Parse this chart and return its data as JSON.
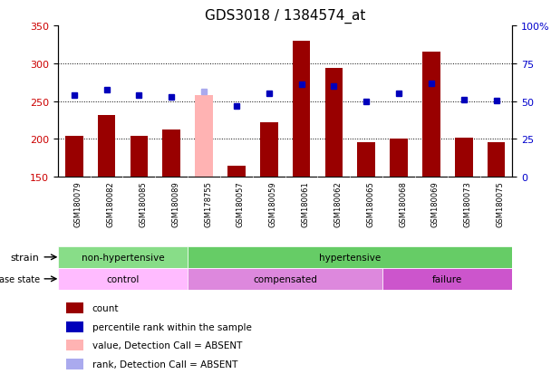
{
  "title": "GDS3018 / 1384574_at",
  "samples": [
    "GSM180079",
    "GSM180082",
    "GSM180085",
    "GSM180089",
    "GSM178755",
    "GSM180057",
    "GSM180059",
    "GSM180061",
    "GSM180062",
    "GSM180065",
    "GSM180068",
    "GSM180069",
    "GSM180073",
    "GSM180075"
  ],
  "counts": [
    204,
    232,
    204,
    213,
    258,
    165,
    222,
    330,
    294,
    196,
    200,
    315,
    202,
    196
  ],
  "absent_count": [
    false,
    false,
    false,
    false,
    true,
    false,
    false,
    false,
    false,
    false,
    false,
    false,
    false,
    false
  ],
  "percentile_ranks": [
    258,
    265,
    258,
    255,
    263,
    243,
    260,
    272,
    270,
    250,
    260,
    273,
    252,
    251
  ],
  "absent_rank": [
    false,
    false,
    false,
    false,
    true,
    false,
    false,
    false,
    false,
    false,
    false,
    false,
    false,
    false
  ],
  "ylim_left": [
    150,
    350
  ],
  "ylim_right": [
    0,
    100
  ],
  "yticks_left": [
    150,
    200,
    250,
    300,
    350
  ],
  "yticks_right": [
    0,
    25,
    50,
    75,
    100
  ],
  "bar_color_normal": "#990000",
  "bar_color_absent": "#ffb3b3",
  "dot_color_normal": "#0000bb",
  "dot_color_absent": "#aaaaee",
  "strain_groups": [
    {
      "label": "non-hypertensive",
      "start": 0,
      "end": 4,
      "color": "#88dd88"
    },
    {
      "label": "hypertensive",
      "start": 4,
      "end": 14,
      "color": "#66cc66"
    }
  ],
  "disease_groups": [
    {
      "label": "control",
      "start": 0,
      "end": 4,
      "color": "#ffbbff"
    },
    {
      "label": "compensated",
      "start": 4,
      "end": 10,
      "color": "#dd88dd"
    },
    {
      "label": "failure",
      "start": 10,
      "end": 14,
      "color": "#cc55cc"
    }
  ],
  "legend_items": [
    {
      "label": "count",
      "color": "#990000"
    },
    {
      "label": "percentile rank within the sample",
      "color": "#0000bb"
    },
    {
      "label": "value, Detection Call = ABSENT",
      "color": "#ffb3b3"
    },
    {
      "label": "rank, Detection Call = ABSENT",
      "color": "#aaaaee"
    }
  ],
  "background_color": "#ffffff",
  "tick_label_color_left": "#cc0000",
  "tick_label_color_right": "#0000cc",
  "tick_area_color": "#cccccc"
}
